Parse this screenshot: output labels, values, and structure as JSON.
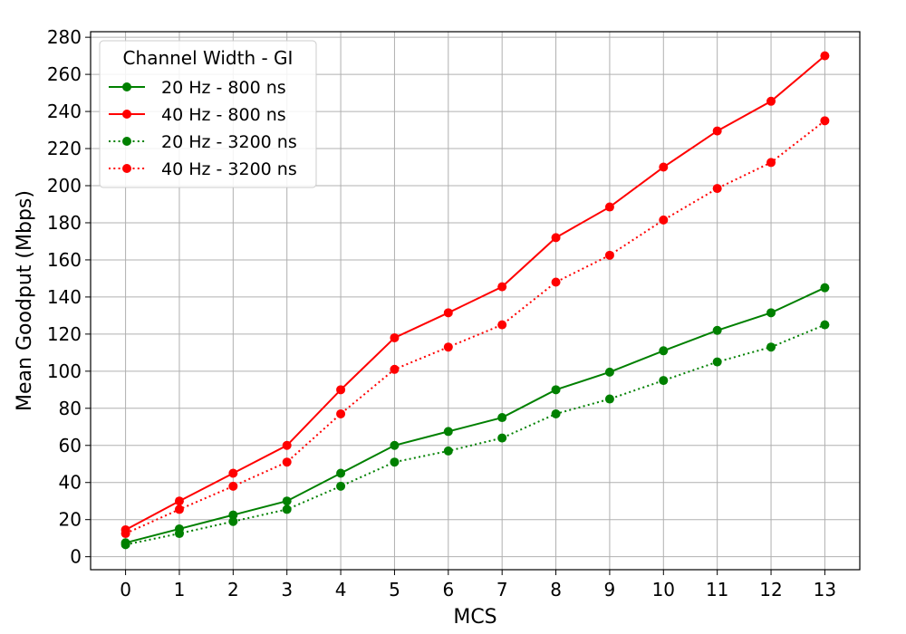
{
  "chart_data": {
    "type": "line",
    "xlabel": "MCS",
    "ylabel": "Mean Goodput (Mbps)",
    "x": [
      0,
      1,
      2,
      3,
      4,
      5,
      6,
      7,
      8,
      9,
      10,
      11,
      12,
      13
    ],
    "xlim": [
      -0.65,
      13.65
    ],
    "ylim": [
      -7,
      283
    ],
    "yticks": [
      0,
      20,
      40,
      60,
      80,
      100,
      120,
      140,
      160,
      180,
      200,
      220,
      240,
      260,
      280
    ],
    "grid": true,
    "legend": {
      "title": "Channel Width - GI",
      "placement": "top-left"
    },
    "series": [
      {
        "name": "20 Hz - 800 ns",
        "color": "#008000",
        "style": "solid",
        "values": [
          7.5,
          15,
          22.5,
          30,
          45,
          60,
          67.5,
          75,
          90,
          99.5,
          111,
          122,
          131.5,
          145
        ]
      },
      {
        "name": "40 Hz - 800 ns",
        "color": "#ff0000",
        "style": "solid",
        "values": [
          14.5,
          30,
          45,
          60,
          90,
          118,
          131.5,
          145.5,
          172,
          188.5,
          210,
          229.5,
          245.5,
          270
        ]
      },
      {
        "name": "20 Hz - 3200 ns",
        "color": "#008000",
        "style": "dotted",
        "values": [
          6.5,
          12.5,
          19,
          25.5,
          38,
          51,
          57,
          64,
          77,
          85,
          95,
          105,
          113,
          125
        ]
      },
      {
        "name": "40 Hz - 3200 ns",
        "color": "#ff0000",
        "style": "dotted",
        "values": [
          12.5,
          25.5,
          38,
          51,
          77,
          101,
          113,
          125,
          148,
          162.5,
          181.5,
          198.5,
          212.5,
          235
        ]
      }
    ]
  }
}
